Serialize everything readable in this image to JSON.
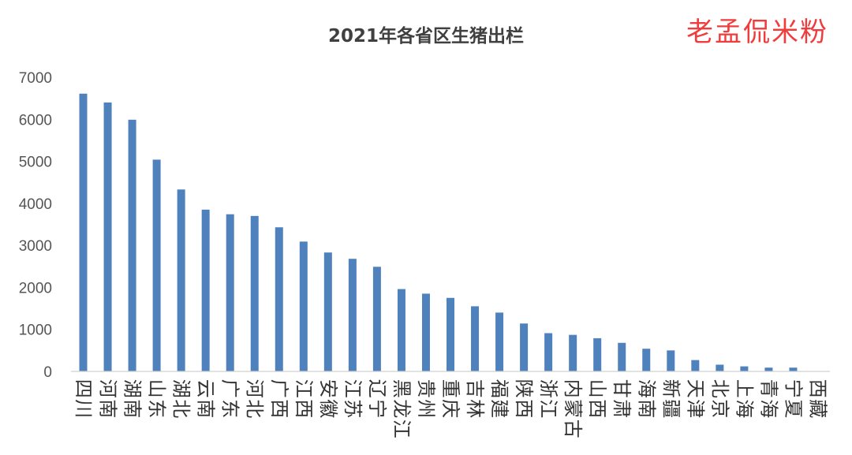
{
  "watermark": "老孟侃米粉",
  "chart_data": {
    "type": "bar",
    "title": "2021年各省区生猪出栏",
    "xlabel": "",
    "ylabel": "",
    "ylim": [
      0,
      7000
    ],
    "yticks": [
      0,
      1000,
      2000,
      3000,
      4000,
      5000,
      6000,
      7000
    ],
    "grid": false,
    "legend": "none",
    "bar_color": "#4f81bd",
    "categories": [
      "四川",
      "河南",
      "湖南",
      "山东",
      "湖北",
      "云南",
      "广东",
      "河北",
      "广西",
      "江西",
      "安徽",
      "江苏",
      "辽宁",
      "黑龙江",
      "贵州",
      "重庆",
      "吉林",
      "福建",
      "陕西",
      "浙江",
      "内蒙古",
      "山西",
      "甘肃",
      "海南",
      "新疆",
      "天津",
      "北京",
      "上海",
      "青海",
      "宁夏",
      "西藏"
    ],
    "values": [
      6610,
      6400,
      5990,
      5040,
      4330,
      3850,
      3740,
      3700,
      3430,
      3090,
      2830,
      2680,
      2490,
      1960,
      1850,
      1750,
      1550,
      1400,
      1140,
      910,
      870,
      790,
      680,
      540,
      500,
      270,
      160,
      120,
      90,
      90,
      0
    ]
  }
}
